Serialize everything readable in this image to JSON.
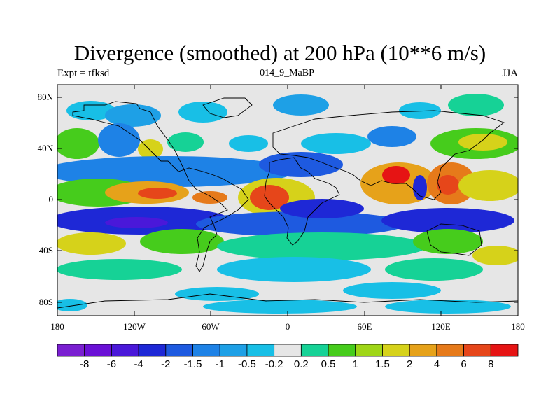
{
  "figure": {
    "title": "Divergence (smoothed) at 200 hPa (10**6 m/s)",
    "left_label": "Expt = tfksd",
    "center_label": "014_9_MaBP",
    "right_label": "JJA"
  },
  "axes": {
    "lat_ticks": [
      "80N",
      "40N",
      "0",
      "40S",
      "80S"
    ],
    "lon_ticks": [
      "180",
      "120W",
      "60W",
      "0",
      "60E",
      "120E",
      "180"
    ]
  },
  "colorbar": {
    "colors": [
      "#7a1fd1",
      "#6a10d6",
      "#4a18d9",
      "#1e28d6",
      "#1e5ae0",
      "#1e82e6",
      "#1ea0e6",
      "#18bfe6",
      "#e6e6e6",
      "#16d296",
      "#46cc1c",
      "#9fd617",
      "#d6d21a",
      "#e6a21a",
      "#e67a1a",
      "#e6461a",
      "#e61414"
    ],
    "labels": [
      "-8",
      "-6",
      "-4",
      "-2",
      "-1.5",
      "-1",
      "-0.5",
      "-0.2",
      "0.2",
      "0.5",
      "1",
      "1.5",
      "2",
      "4",
      "6",
      "8"
    ]
  },
  "land_color": "#000000",
  "background_color": "#e6e6e6"
}
